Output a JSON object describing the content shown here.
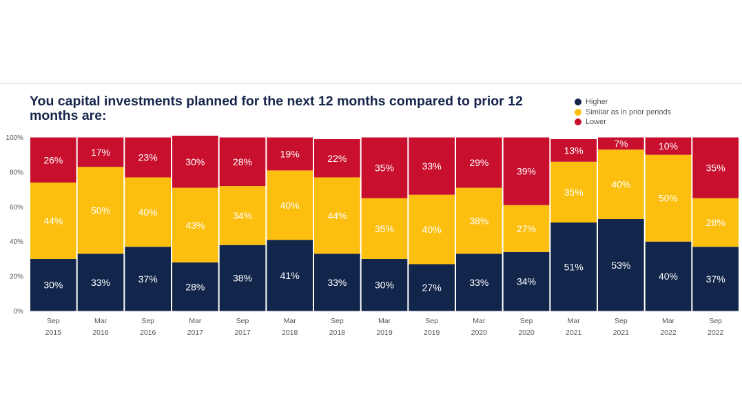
{
  "chart_data": {
    "type": "bar",
    "stacked": true,
    "title": "You capital investments planned for the next 12 months compared to prior 12 months are:",
    "categories": [
      [
        "Sep",
        "2015"
      ],
      [
        "Mar",
        "2016"
      ],
      [
        "Sep",
        "2016"
      ],
      [
        "Mar",
        "2017"
      ],
      [
        "Sep",
        "2017"
      ],
      [
        "Mar",
        "2018"
      ],
      [
        "Sep",
        "2018"
      ],
      [
        "Mar",
        "2019"
      ],
      [
        "Sep",
        "2019"
      ],
      [
        "Mar",
        "2020"
      ],
      [
        "Sep",
        "2020"
      ],
      [
        "Mar",
        "2021"
      ],
      [
        "Sep",
        "2021"
      ],
      [
        "Mar",
        "2022"
      ],
      [
        "Sep",
        "2022"
      ]
    ],
    "series": [
      {
        "name": "Higher",
        "color": "#12264b",
        "values": [
          30,
          33,
          37,
          28,
          38,
          41,
          33,
          30,
          27,
          33,
          34,
          51,
          53,
          40,
          37
        ]
      },
      {
        "name": "Similar as in prior periods",
        "color": "#fcbf10",
        "values": [
          44,
          50,
          40,
          43,
          34,
          40,
          44,
          35,
          40,
          38,
          27,
          35,
          40,
          50,
          28
        ]
      },
      {
        "name": "Lower",
        "color": "#c8102e",
        "values": [
          26,
          17,
          23,
          30,
          28,
          19,
          22,
          35,
          33,
          29,
          39,
          13,
          7,
          10,
          35
        ]
      }
    ],
    "y_ticks": [
      "0%",
      "20%",
      "40%",
      "60%",
      "80%",
      "100%"
    ],
    "ylim": [
      0,
      100
    ],
    "xlabel": "",
    "ylabel": "",
    "legend_position": "top-right"
  }
}
